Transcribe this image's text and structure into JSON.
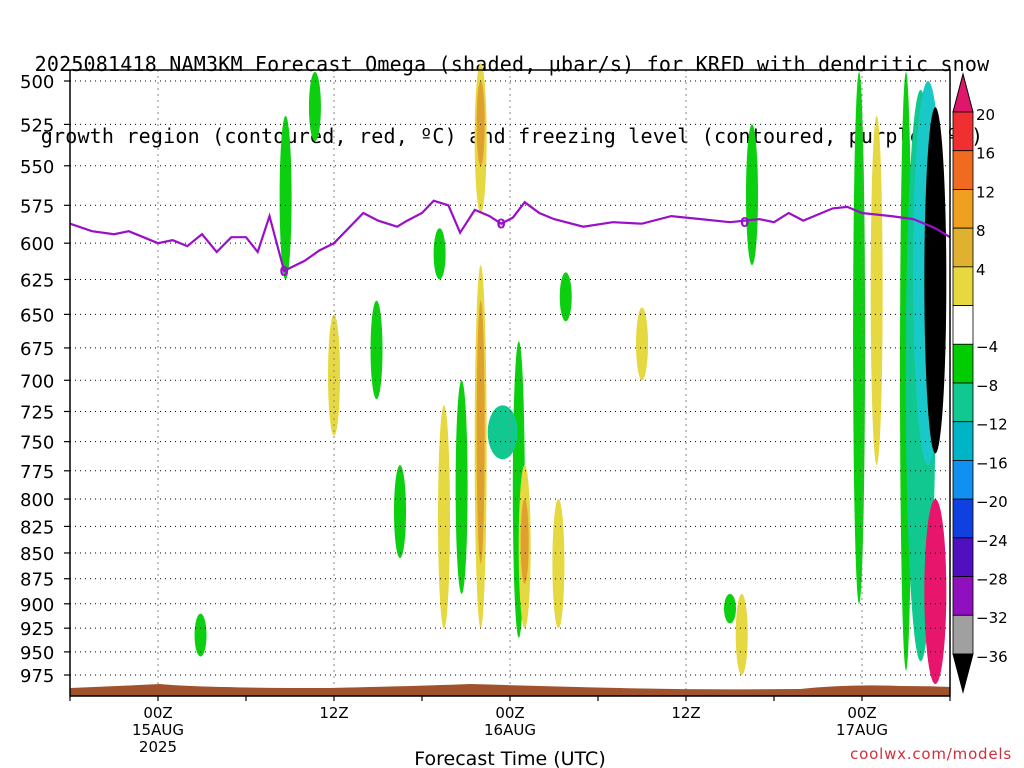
{
  "title_line1": "2025081418 NAM3KM Forecast Omega (shaded, μbar/s) for KRFD with dendritic snow",
  "title_line2": "growth region (contoured, red, ºC) and freezing level (contoured, purple, ºC)",
  "credit": "coolwx.com/models",
  "colors": {
    "freezing_line": "#9a10c8",
    "terrain": "#a0522d",
    "yellow": "#e6d840",
    "orange": "#e0a030",
    "green": "#0ccf10",
    "teal": "#10c890",
    "cyan": "#19c8c8",
    "pink": "#e8156c",
    "black": "#000000"
  },
  "chart_data": {
    "type": "heatmap",
    "xlabel": "Forecast Time (UTC)",
    "ylabel": "",
    "x_ticks": [
      {
        "hour": 0,
        "labels": [
          "00Z",
          "15AUG",
          "2025"
        ]
      },
      {
        "hour": 12,
        "labels": [
          "12Z"
        ]
      },
      {
        "hour": 24,
        "labels": [
          "00Z",
          "16AUG"
        ]
      },
      {
        "hour": 36,
        "labels": [
          "12Z"
        ]
      },
      {
        "hour": 48,
        "labels": [
          "00Z",
          "17AUG"
        ]
      }
    ],
    "x_range_hours": [
      -6,
      54
    ],
    "y_ticks": [
      500,
      525,
      550,
      575,
      600,
      625,
      650,
      675,
      700,
      725,
      750,
      775,
      800,
      825,
      850,
      875,
      900,
      925,
      950,
      975
    ],
    "y_range_hPa": [
      500,
      1000
    ],
    "grid": true,
    "colorbar": {
      "labels": [
        "20",
        "16",
        "12",
        "8",
        "4",
        "−4",
        "−8",
        "−12",
        "−16",
        "−20",
        "−24",
        "−28",
        "−32",
        "−36"
      ],
      "colors": [
        "#e0156c",
        "#f03030",
        "#f06a20",
        "#f0a020",
        "#e0b030",
        "#e8d840",
        "#ffffff",
        "#00cc00",
        "#10c890",
        "#00b4c8",
        "#1090f0",
        "#1040e0",
        "#5010c0",
        "#9010c0",
        "#a0a0a0",
        "#000000"
      ]
    },
    "freezing_level_label": "0",
    "freezing_level_hPa": [
      {
        "h": -6.0,
        "p": 587
      },
      {
        "h": -4.5,
        "p": 592
      },
      {
        "h": -3.0,
        "p": 594
      },
      {
        "h": -2.0,
        "p": 592
      },
      {
        "h": 0.0,
        "p": 600
      },
      {
        "h": 1.0,
        "p": 598
      },
      {
        "h": 2.0,
        "p": 602
      },
      {
        "h": 3.0,
        "p": 594
      },
      {
        "h": 4.0,
        "p": 606
      },
      {
        "h": 5.0,
        "p": 596
      },
      {
        "h": 6.0,
        "p": 596
      },
      {
        "h": 6.8,
        "p": 606
      },
      {
        "h": 7.6,
        "p": 582
      },
      {
        "h": 8.6,
        "p": 619
      },
      {
        "h": 10.0,
        "p": 612
      },
      {
        "h": 11.0,
        "p": 605
      },
      {
        "h": 12.0,
        "p": 600
      },
      {
        "h": 14.0,
        "p": 580
      },
      {
        "h": 15.0,
        "p": 585
      },
      {
        "h": 16.3,
        "p": 589
      },
      {
        "h": 17.0,
        "p": 585
      },
      {
        "h": 18.0,
        "p": 580
      },
      {
        "h": 18.8,
        "p": 572
      },
      {
        "h": 19.8,
        "p": 575
      },
      {
        "h": 20.6,
        "p": 593
      },
      {
        "h": 21.6,
        "p": 578
      },
      {
        "h": 22.6,
        "p": 582
      },
      {
        "h": 23.4,
        "p": 587
      },
      {
        "h": 24.2,
        "p": 583
      },
      {
        "h": 25.0,
        "p": 573
      },
      {
        "h": 26.0,
        "p": 580
      },
      {
        "h": 27.0,
        "p": 584
      },
      {
        "h": 29.0,
        "p": 589
      },
      {
        "h": 31.0,
        "p": 586
      },
      {
        "h": 33.0,
        "p": 587
      },
      {
        "h": 35.0,
        "p": 582
      },
      {
        "h": 37.0,
        "p": 584
      },
      {
        "h": 39.0,
        "p": 586
      },
      {
        "h": 41.0,
        "p": 584
      },
      {
        "h": 42.0,
        "p": 586
      },
      {
        "h": 43.0,
        "p": 580
      },
      {
        "h": 44.0,
        "p": 585
      },
      {
        "h": 45.0,
        "p": 581
      },
      {
        "h": 46.0,
        "p": 577
      },
      {
        "h": 47.0,
        "p": 576
      },
      {
        "h": 48.0,
        "p": 580
      },
      {
        "h": 50.0,
        "p": 582
      },
      {
        "h": 51.5,
        "p": 584
      },
      {
        "h": 53.0,
        "p": 590
      },
      {
        "h": 54.0,
        "p": 596
      }
    ],
    "freezing_label_hours": [
      8.6,
      23.4,
      40.0
    ],
    "omega_regions": [
      {
        "color": "yellow",
        "h": 12.0,
        "p_top": 650,
        "p_bot": 745
      },
      {
        "color": "green",
        "h": 14.9,
        "p_top": 640,
        "p_bot": 715
      },
      {
        "color": "green",
        "h": 8.7,
        "p_top": 520,
        "p_bot": 625
      },
      {
        "color": "green",
        "h": 10.7,
        "p_top": 495,
        "p_bot": 535
      },
      {
        "color": "green",
        "h": 2.9,
        "p_top": 910,
        "p_bot": 955
      },
      {
        "color": "yellow",
        "h": 22.0,
        "p_top": 490,
        "p_bot": 580
      },
      {
        "color": "orange",
        "h": 22.0,
        "p_top": 500,
        "p_bot": 550
      },
      {
        "color": "yellow",
        "h": 22.0,
        "p_top": 615,
        "p_bot": 925
      },
      {
        "color": "orange",
        "h": 22.0,
        "p_top": 640,
        "p_bot": 860
      },
      {
        "color": "yellow",
        "h": 19.5,
        "p_top": 720,
        "p_bot": 925
      },
      {
        "color": "green",
        "h": 16.5,
        "p_top": 770,
        "p_bot": 855
      },
      {
        "color": "green",
        "h": 20.7,
        "p_top": 700,
        "p_bot": 890
      },
      {
        "color": "green",
        "h": 24.6,
        "p_top": 670,
        "p_bot": 935
      },
      {
        "color": "teal",
        "h": 23.5,
        "p_top": 720,
        "p_bot": 765
      },
      {
        "color": "yellow",
        "h": 25.0,
        "p_top": 770,
        "p_bot": 925
      },
      {
        "color": "orange",
        "h": 25.0,
        "p_top": 800,
        "p_bot": 880
      },
      {
        "color": "yellow",
        "h": 27.3,
        "p_top": 800,
        "p_bot": 925
      },
      {
        "color": "green",
        "h": 27.8,
        "p_top": 620,
        "p_bot": 655
      },
      {
        "color": "green",
        "h": 19.2,
        "p_top": 590,
        "p_bot": 625
      },
      {
        "color": "yellow",
        "h": 33.0,
        "p_top": 645,
        "p_bot": 700
      },
      {
        "color": "green",
        "h": 40.5,
        "p_top": 525,
        "p_bot": 615
      },
      {
        "color": "green",
        "h": 39.0,
        "p_top": 890,
        "p_bot": 920
      },
      {
        "color": "yellow",
        "h": 39.8,
        "p_top": 890,
        "p_bot": 975
      },
      {
        "color": "yellow",
        "h": 49.0,
        "p_top": 520,
        "p_bot": 770
      },
      {
        "color": "green",
        "h": 47.8,
        "p_top": 495,
        "p_bot": 900
      },
      {
        "color": "green",
        "h": 51.0,
        "p_top": 495,
        "p_bot": 970
      },
      {
        "color": "teal",
        "h": 52.0,
        "p_top": 505,
        "p_bot": 960
      },
      {
        "color": "cyan",
        "h": 52.5,
        "p_top": 500,
        "p_bot": 770
      },
      {
        "color": "pink",
        "h": 53.0,
        "p_top": 800,
        "p_bot": 985
      },
      {
        "color": "black",
        "h": 53.0,
        "p_top": 515,
        "p_bot": 760
      }
    ]
  }
}
